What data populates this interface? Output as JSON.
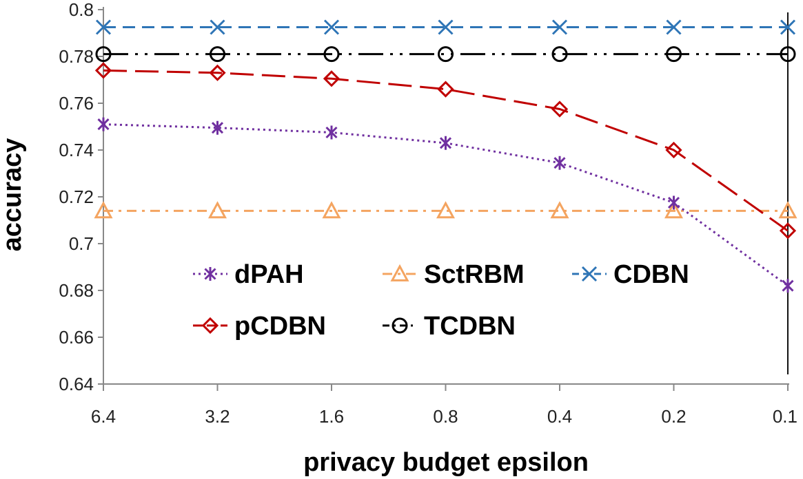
{
  "chart_data": {
    "type": "line",
    "title": "",
    "xlabel": "privacy budget epsilon",
    "ylabel": "accuracy",
    "categories": [
      "6.4",
      "3.2",
      "1.6",
      "0.8",
      "0.4",
      "0.2",
      "0.1"
    ],
    "ylim": [
      0.64,
      0.8
    ],
    "yticks": [
      "0.64",
      "0.66",
      "0.68",
      "0.7",
      "0.72",
      "0.74",
      "0.76",
      "0.78",
      "0.8"
    ],
    "ytick_values": [
      0.64,
      0.66,
      0.68,
      0.7,
      0.72,
      0.74,
      0.76,
      0.78,
      0.8
    ],
    "grid": false,
    "legend_position": "lower-left, inside plot",
    "series": [
      {
        "name": "CDBN",
        "values": [
          0.7925,
          0.7925,
          0.7925,
          0.7925,
          0.7925,
          0.7925,
          0.7925
        ],
        "color": "#2e75b6",
        "marker": "x",
        "dash": "dashed"
      },
      {
        "name": "TCDBN",
        "values": [
          0.781,
          0.781,
          0.781,
          0.781,
          0.781,
          0.781,
          0.781
        ],
        "color": "#000000",
        "marker": "circle",
        "dash": "long-dash-dot-dot"
      },
      {
        "name": "pCDBN",
        "values": [
          0.774,
          0.773,
          0.7705,
          0.766,
          0.7575,
          0.74,
          0.7055
        ],
        "color": "#c00000",
        "marker": "diamond",
        "dash": "long-dash"
      },
      {
        "name": "dPAH",
        "values": [
          0.751,
          0.7495,
          0.7475,
          0.743,
          0.7345,
          0.7175,
          0.682
        ],
        "color": "#7030a0",
        "marker": "asterisk",
        "dash": "dotted"
      },
      {
        "name": "SctRBM",
        "values": [
          0.714,
          0.714,
          0.714,
          0.714,
          0.714,
          0.714,
          0.714
        ],
        "color": "#f4a460",
        "marker": "triangle",
        "dash": "dash-dot"
      }
    ],
    "legend": [
      {
        "label": "dPAH",
        "series": "dPAH"
      },
      {
        "label": "SctRBM",
        "series": "SctRBM"
      },
      {
        "label": "CDBN",
        "series": "CDBN"
      },
      {
        "label": "pCDBN",
        "series": "pCDBN"
      },
      {
        "label": "TCDBN",
        "series": "TCDBN"
      }
    ]
  }
}
